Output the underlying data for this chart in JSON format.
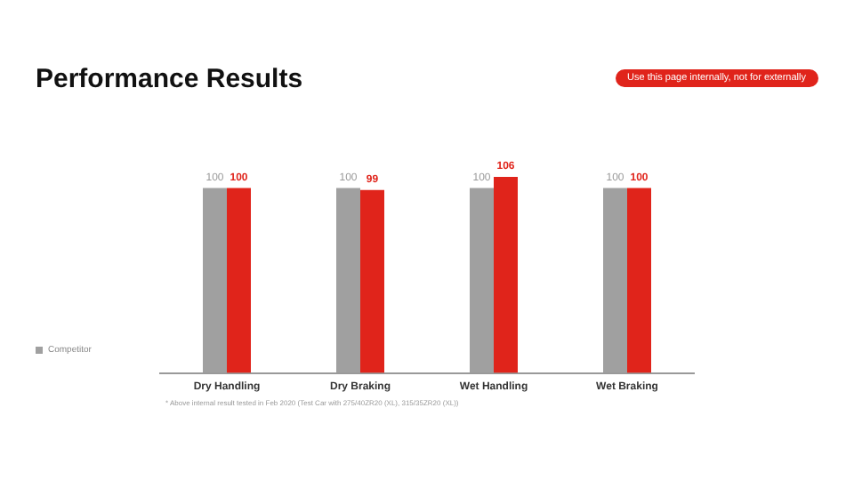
{
  "chart_data": {
    "type": "bar",
    "title": "Performance Results",
    "annotations": [
      "Use this page internally, not for externally",
      "* Above internal result tested in Feb 2020 (Test Car with 275/40ZR20 (XL), 315/35ZR20 (XL))"
    ],
    "categories": [
      "Dry Handling",
      "Dry Braking",
      "Wet Handling",
      "Wet Braking"
    ],
    "series": [
      {
        "name": "Competitor",
        "color": "#a0a0a0",
        "values": [
          100,
          100,
          100,
          100
        ]
      },
      {
        "color": "#e0241b",
        "values": [
          100,
          99,
          106,
          100
        ]
      }
    ],
    "tick_labels": "x",
    "data_labels": true,
    "grid": false,
    "legend": "bottom left"
  }
}
